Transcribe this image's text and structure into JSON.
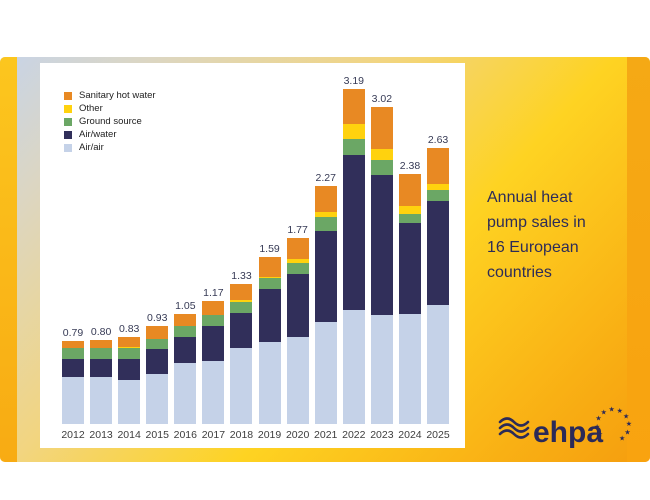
{
  "slide": {
    "title_lines": [
      "Annual heat",
      "pump sales in",
      "16 European",
      "countries"
    ],
    "logo_text": "ehpa",
    "colors": {
      "title_text": "#2d2c58",
      "slide_yellow": "#fed322",
      "slide_orange": "#f59d0e",
      "panel_background": "#ffffff",
      "logo_navy": "#2b2a58"
    }
  },
  "chart_data": {
    "type": "bar",
    "stacked": true,
    "title": "Annual heat pump sales in 16 European countries",
    "xlabel": "",
    "ylabel": "",
    "units": "million units",
    "grid": false,
    "legend_position": "top-left",
    "ylim": [
      0,
      3.4
    ],
    "categories": [
      "2012",
      "2013",
      "2014",
      "2015",
      "2016",
      "2017",
      "2018",
      "2019",
      "2020",
      "2021",
      "2022",
      "2023",
      "2024",
      "2025"
    ],
    "series": [
      {
        "name": "Air/air",
        "color": "#c5d2e8",
        "values": [
          0.45,
          0.45,
          0.42,
          0.48,
          0.58,
          0.6,
          0.72,
          0.78,
          0.83,
          0.97,
          1.09,
          1.04,
          1.05,
          1.13
        ]
      },
      {
        "name": "Air/water",
        "color": "#312f5a",
        "values": [
          0.17,
          0.17,
          0.2,
          0.23,
          0.25,
          0.33,
          0.34,
          0.51,
          0.6,
          0.87,
          1.47,
          1.33,
          0.86,
          0.99
        ]
      },
      {
        "name": "Ground source",
        "color": "#6ba765",
        "values": [
          0.1,
          0.1,
          0.1,
          0.1,
          0.1,
          0.11,
          0.1,
          0.1,
          0.1,
          0.13,
          0.15,
          0.14,
          0.09,
          0.11
        ]
      },
      {
        "name": "Other",
        "color": "#ffd20e",
        "values": [
          0.0,
          0.0,
          0.01,
          0.0,
          0.0,
          0.0,
          0.02,
          0.01,
          0.04,
          0.05,
          0.15,
          0.11,
          0.08,
          0.06
        ]
      },
      {
        "name": "Sanitary hot water",
        "color": "#e88923",
        "values": [
          0.07,
          0.08,
          0.1,
          0.12,
          0.12,
          0.13,
          0.15,
          0.19,
          0.2,
          0.25,
          0.33,
          0.4,
          0.3,
          0.34
        ]
      }
    ],
    "totals": [
      "0.79",
      "0.80",
      "0.83",
      "0.93",
      "1.05",
      "1.17",
      "1.33",
      "1.59",
      "1.77",
      "2.27",
      "3.19",
      "3.02",
      "2.38",
      "2.63"
    ],
    "legend": [
      "Sanitary hot water",
      "Other",
      "Ground source",
      "Air/water",
      "Air/air"
    ]
  }
}
